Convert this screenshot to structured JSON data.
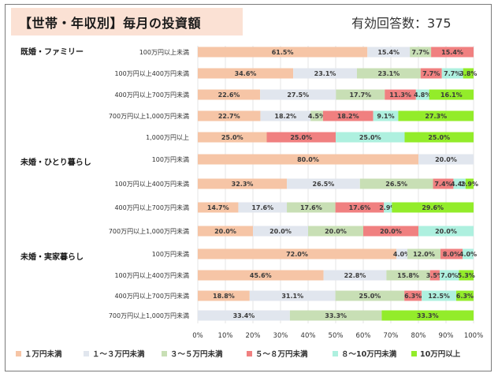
{
  "title": "【世帯・年収別】毎月の投資額",
  "respondents": "有効回答数：375",
  "colors": [
    "#f6c5a6",
    "#e1e6ee",
    "#c8dfb5",
    "#f08080",
    "#aef0df",
    "#93ec2a"
  ],
  "chart_data": {
    "type": "bar",
    "orientation": "horizontal",
    "stacked": true,
    "xlim": [
      0,
      100
    ],
    "x_ticks": [
      "0%",
      "10%",
      "20%",
      "30%",
      "40%",
      "50%",
      "60%",
      "70%",
      "80%",
      "90%",
      "100%"
    ],
    "legend": {
      "position": "bottom",
      "items": [
        "１万円未満",
        "１～３万円未満",
        "３～５万円未満",
        "５～８万円未満",
        "８～10万円未満",
        "10万円以上"
      ]
    },
    "groups": [
      {
        "name": "既婚・ファミリー",
        "rows": [
          {
            "label": "100万円以上未満",
            "values": [
              61.5,
              15.4,
              7.7,
              15.4,
              0,
              0
            ],
            "labels": [
              "61.5%",
              "15.4%",
              "7.7%",
              "15.4%",
              "",
              ""
            ]
          },
          {
            "label": "100万円以上400万円未満",
            "values": [
              34.6,
              23.1,
              23.1,
              7.7,
              7.7,
              3.8
            ],
            "labels": [
              "34.6%",
              "23.1%",
              "23.1%",
              "7.7%",
              "7.7%",
              "3.8%"
            ]
          },
          {
            "label": "400万円以上700万円未満",
            "values": [
              22.6,
              27.5,
              17.7,
              11.3,
              4.8,
              16.1
            ],
            "labels": [
              "22.6%",
              "27.5%",
              "17.7%",
              "11.3%",
              "4.8%",
              "16.1%"
            ]
          },
          {
            "label": "700万円以上1,000万円未満",
            "values": [
              22.7,
              18.2,
              4.5,
              18.2,
              9.1,
              27.3
            ],
            "labels": [
              "22.7%",
              "18.2%",
              "4.5%",
              "18.2%",
              "9.1%",
              "27.3%"
            ]
          },
          {
            "label": "1,000万円以上",
            "values": [
              25.0,
              0,
              0,
              25.0,
              25.0,
              25.0
            ],
            "labels": [
              "25.0%",
              "",
              "",
              "25.0%",
              "25.0%",
              "25.0%"
            ]
          }
        ]
      },
      {
        "name": "未婚・ひとり暮らし",
        "rows": [
          {
            "label": "100万円未満",
            "values": [
              80.0,
              20.0,
              0,
              0,
              0,
              0
            ],
            "labels": [
              "80.0%",
              "20.0%",
              "",
              "",
              "",
              ""
            ]
          },
          {
            "label": "100万円以上400万円未満",
            "values": [
              32.3,
              26.5,
              26.5,
              7.4,
              4.4,
              2.9
            ],
            "labels": [
              "32.3%",
              "26.5%",
              "26.5%",
              "7.4%",
              "4.4%",
              "2.9%"
            ]
          },
          {
            "label": "400万円以上700万円未満",
            "values": [
              14.7,
              17.6,
              17.6,
              17.6,
              2.9,
              29.6
            ],
            "labels": [
              "14.7%",
              "17.6%",
              "17.6%",
              "17.6%",
              "2.9%",
              "29.6%"
            ]
          },
          {
            "label": "700万円以上1,000万円未満",
            "values": [
              20.0,
              20.0,
              20.0,
              20.0,
              20.0,
              0
            ],
            "labels": [
              "20.0%",
              "20.0%",
              "20.0%",
              "20.0%",
              "20.0%",
              ""
            ]
          }
        ]
      },
      {
        "name": "未婚・実家暮らし",
        "rows": [
          {
            "label": "100万円未満",
            "values": [
              72.0,
              4.0,
              12.0,
              8.0,
              4.0,
              0
            ],
            "labels": [
              "72.0%",
              "4.0%",
              "12.0%",
              "8.0%",
              "4.0%",
              ""
            ]
          },
          {
            "label": "100万円以上400万円未満",
            "values": [
              45.6,
              22.8,
              15.8,
              3.5,
              7.0,
              5.3
            ],
            "labels": [
              "45.6%",
              "22.8%",
              "15.8%",
              "3.5%",
              "7.0%",
              "5.3%"
            ]
          },
          {
            "label": "400万円以上700万円未満",
            "values": [
              18.8,
              31.1,
              25.0,
              6.3,
              12.5,
              6.3
            ],
            "labels": [
              "18.8%",
              "31.1%",
              "25.0%",
              "6.3%",
              "12.5%",
              "6.3%"
            ]
          },
          {
            "label": "700万円以上1,000万円未満",
            "values": [
              0,
              33.4,
              33.3,
              0,
              0,
              33.3
            ],
            "labels": [
              "",
              "33.4%",
              "33.3%",
              "",
              "",
              "33.3%"
            ]
          }
        ]
      }
    ]
  }
}
